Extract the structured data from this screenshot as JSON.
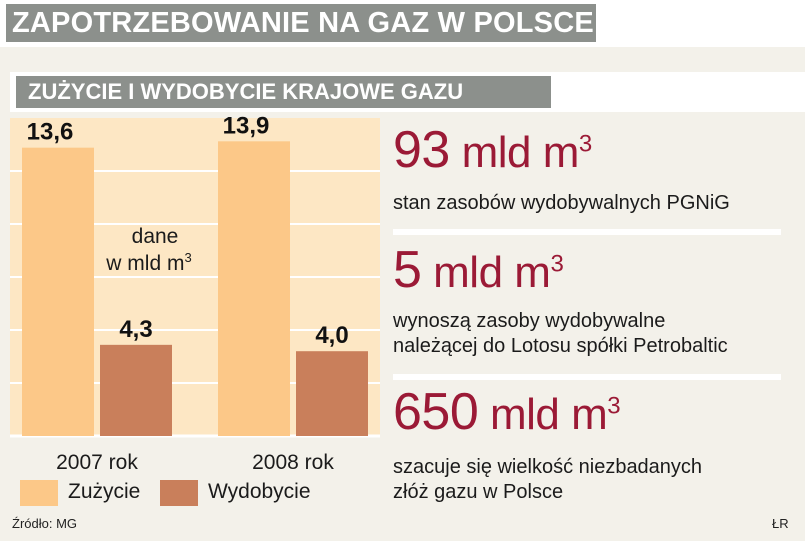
{
  "header": {
    "title": "ZAPOTRZEBOWANIE NA GAZ W POLSCE"
  },
  "section": {
    "title": "ZUŻYCIE I WYDOBYCIE KRAJOWE GAZU"
  },
  "chart_data": {
    "type": "bar",
    "categories": [
      "2007 rok",
      "2008 rok"
    ],
    "series": [
      {
        "name": "Zużycie",
        "values": [
          13.6,
          13.9
        ],
        "labels": [
          "13,6",
          "13,9"
        ]
      },
      {
        "name": "Wydobycie",
        "values": [
          4.3,
          4.0
        ],
        "labels": [
          "4,3",
          "4,0"
        ]
      }
    ],
    "annotation": {
      "line1": "dane",
      "line2": "w mld m",
      "sup": "3"
    },
    "ylim": [
      0,
      15
    ],
    "grid": true,
    "legend_position": "bottom-left",
    "colors": {
      "zuzycie": "#fcc888",
      "wydobycie": "#c97f5b",
      "background": "#fde7c4",
      "grid": "#ffffff"
    }
  },
  "stats": [
    {
      "num": "93",
      "unit": "mld m",
      "sup": "3",
      "desc": [
        "stan zasobów wydobywalnych PGNiG"
      ]
    },
    {
      "num": "5",
      "unit": "mld m",
      "sup": "3",
      "desc": [
        "wynoszą zasoby wydobywalne",
        "należącej do Lotosu spółki Petrobaltic"
      ]
    },
    {
      "num": "650",
      "unit": "mld m",
      "sup": "3",
      "desc": [
        "szacuje się wielkość niezbadanych",
        "złóż gazu w Polsce"
      ]
    }
  ],
  "footer": {
    "source": "Źródło: MG",
    "author": "ŁR"
  }
}
